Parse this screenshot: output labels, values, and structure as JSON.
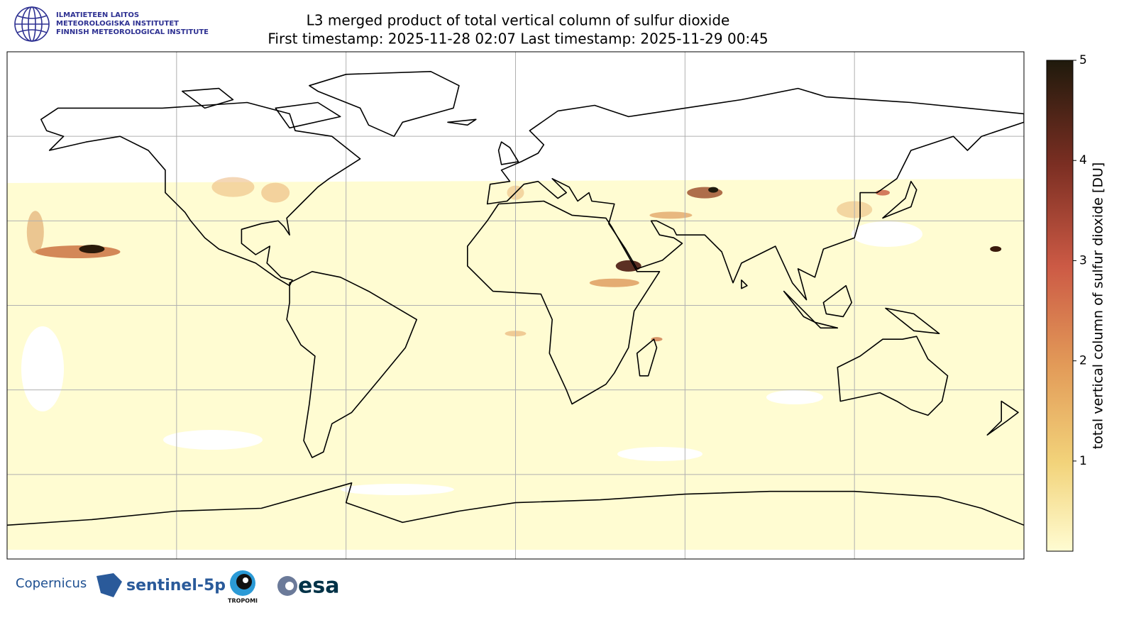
{
  "header": {
    "title": "L3 merged product of total vertical column of sulfur dioxide",
    "subtitle": "First timestamp: 2025-11-28 02:07   Last timestamp: 2025-11-29 00:45",
    "institute": [
      "ILMATIETEEN LAITOS",
      "METEOROLOGISKA INSTITUTET",
      "FINNISH METEOROLOGICAL INSTITUTE"
    ]
  },
  "colorbar": {
    "label": "total vertical column of sulfur dioxide [DU]",
    "ylim": [
      0.1,
      5
    ],
    "yticks": [
      1,
      2,
      3,
      4,
      5
    ]
  },
  "footer": {
    "logos": [
      "Copernicus",
      "sentinel-5p",
      "TROPOMI",
      "esa"
    ]
  }
}
